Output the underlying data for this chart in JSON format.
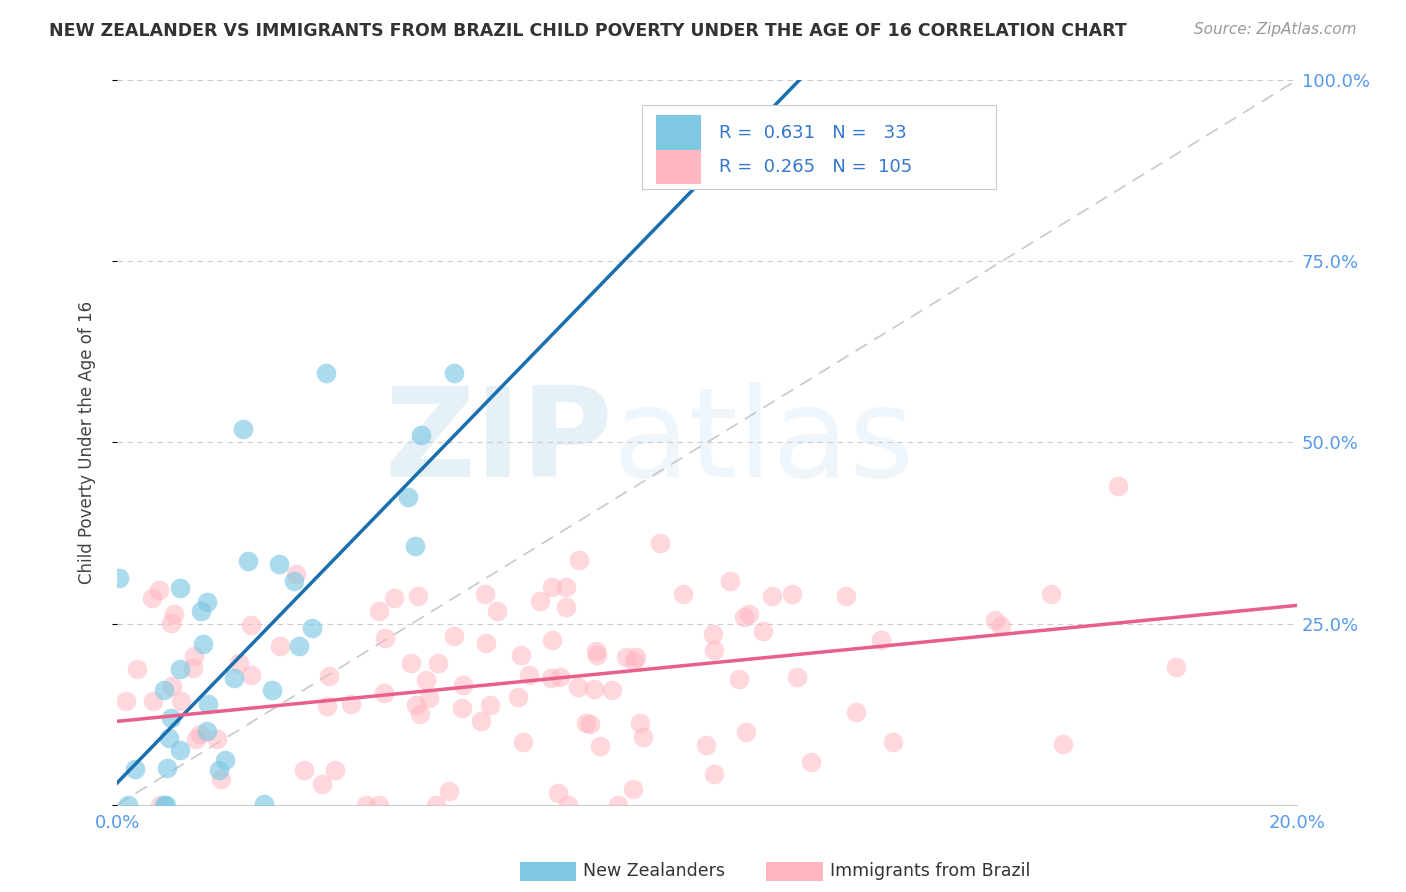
{
  "title": "NEW ZEALANDER VS IMMIGRANTS FROM BRAZIL CHILD POVERTY UNDER THE AGE OF 16 CORRELATION CHART",
  "source": "Source: ZipAtlas.com",
  "ylabel": "Child Poverty Under the Age of 16",
  "r1": 0.631,
  "n1": 33,
  "r2": 0.265,
  "n2": 105,
  "color_nz": "#7ec8e3",
  "color_br": "#ffb6c1",
  "color_nz_line": "#1a6faf",
  "color_br_line": "#e8608a",
  "color_diag": "#bbbbbb",
  "xlim": [
    0.0,
    0.2
  ],
  "ylim": [
    0.0,
    1.0
  ],
  "background_color": "#ffffff",
  "legend_label_1": "New Zealanders",
  "legend_label_2": "Immigrants from Brazil",
  "nz_intercept": 0.02,
  "nz_slope": 8.5,
  "br_intercept": 0.1,
  "br_slope": 0.85,
  "seed": 42
}
